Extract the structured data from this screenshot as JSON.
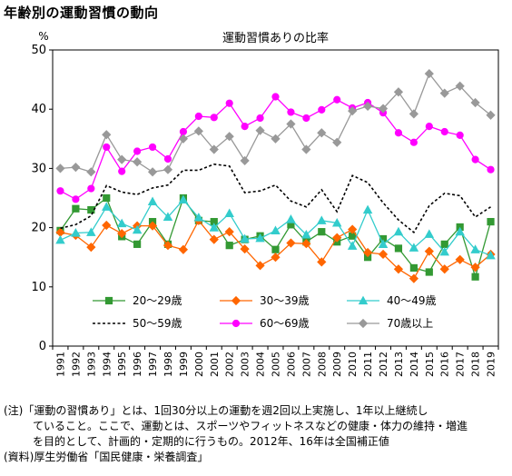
{
  "page": {
    "title": "年齢別の運動習慣の動向",
    "notes": [
      "(注)「運動の習慣あり」とは、1回30分以上の運動を週2回以上実施し、1年以上継続し",
      "ていること。ここで、運動とは、スポーツやフィットネスなどの健康・体力の維持・増進",
      "を目的として、計画的・定期的に行うもの。2012年、16年は全国補正値",
      "(資料)厚生労働省「国民健康・栄養調査」"
    ]
  },
  "chart_data": {
    "type": "line",
    "title": "運動習慣ありの比率",
    "ylabel": "%",
    "ylim": [
      0,
      50
    ],
    "yticks": [
      0,
      10,
      20,
      30,
      40,
      50
    ],
    "grid": false,
    "legend_position": "bottom-inside",
    "categories": [
      "1991",
      "1992",
      "1993",
      "1994",
      "1995",
      "1996",
      "1997",
      "1998",
      "1999",
      "2000",
      "2001",
      "2002",
      "2003",
      "2004",
      "2005",
      "2006",
      "2007",
      "2008",
      "2009",
      "2010",
      "2011",
      "2012",
      "2013",
      "2014",
      "2015",
      "2016",
      "2017",
      "2018",
      "2019"
    ],
    "series": [
      {
        "name": "20～29歳",
        "color": "#339933",
        "marker": "square",
        "dash": false,
        "values": [
          19.5,
          23.2,
          23.0,
          25.0,
          18.5,
          17.2,
          21.0,
          17.2,
          25.0,
          21.2,
          21.0,
          17.0,
          18.0,
          18.6,
          16.3,
          20.5,
          17.6,
          19.3,
          17.6,
          18.6,
          15.0,
          18.1,
          16.5,
          13.2,
          12.5,
          17.2,
          20.1,
          11.7,
          21.0
        ]
      },
      {
        "name": "30～39歳",
        "color": "#ff6600",
        "marker": "diamond",
        "dash": false,
        "values": [
          19.2,
          18.7,
          16.7,
          20.4,
          19.0,
          20.3,
          20.3,
          17.0,
          16.3,
          21.2,
          18.0,
          19.3,
          16.4,
          13.6,
          15.0,
          17.4,
          17.3,
          14.2,
          18.3,
          19.7,
          15.8,
          15.5,
          13.0,
          11.4,
          16.0,
          13.0,
          14.6,
          13.3,
          15.5
        ]
      },
      {
        "name": "40～49歳",
        "color": "#33cccc",
        "marker": "triangle",
        "dash": false,
        "values": [
          17.9,
          19.1,
          19.2,
          23.5,
          20.7,
          19.6,
          24.4,
          21.8,
          24.7,
          21.7,
          20.0,
          22.4,
          18.1,
          18.2,
          19.5,
          21.4,
          18.8,
          21.2,
          20.8,
          16.9,
          23.0,
          17.2,
          19.3,
          16.6,
          18.9,
          15.9,
          19.3,
          16.3,
          15.3
        ]
      },
      {
        "name": "50～59歳",
        "color": "#000000",
        "marker": "none",
        "dash": true,
        "values": [
          19.9,
          20.5,
          22.0,
          27.1,
          26.0,
          25.6,
          26.7,
          27.2,
          29.7,
          29.7,
          30.7,
          30.4,
          25.9,
          26.2,
          27.2,
          24.5,
          23.5,
          26.4,
          22.7,
          28.8,
          27.6,
          24.2,
          21.3,
          19.2,
          23.7,
          25.8,
          25.4,
          21.8,
          23.5
        ]
      },
      {
        "name": "60～69歳",
        "color": "#ff00ff",
        "marker": "circle",
        "dash": false,
        "values": [
          26.2,
          24.8,
          26.6,
          33.6,
          29.5,
          32.9,
          33.6,
          31.6,
          36.2,
          38.8,
          38.6,
          41.0,
          37.1,
          38.5,
          42.1,
          39.5,
          38.5,
          39.9,
          41.6,
          40.2,
          41.1,
          39.4,
          36.0,
          34.4,
          37.1,
          36.2,
          35.6,
          31.5,
          29.8
        ]
      },
      {
        "name": "70歳以上",
        "color": "#999999",
        "marker": "diamond",
        "dash": false,
        "values": [
          30.0,
          30.2,
          29.4,
          35.7,
          31.5,
          31.1,
          29.4,
          29.8,
          35.0,
          36.3,
          33.2,
          35.4,
          31.3,
          36.4,
          35.0,
          37.5,
          33.2,
          36.0,
          34.4,
          39.7,
          40.5,
          40.1,
          42.9,
          39.2,
          46.0,
          42.7,
          43.9,
          41.1,
          39.0
        ]
      }
    ]
  }
}
